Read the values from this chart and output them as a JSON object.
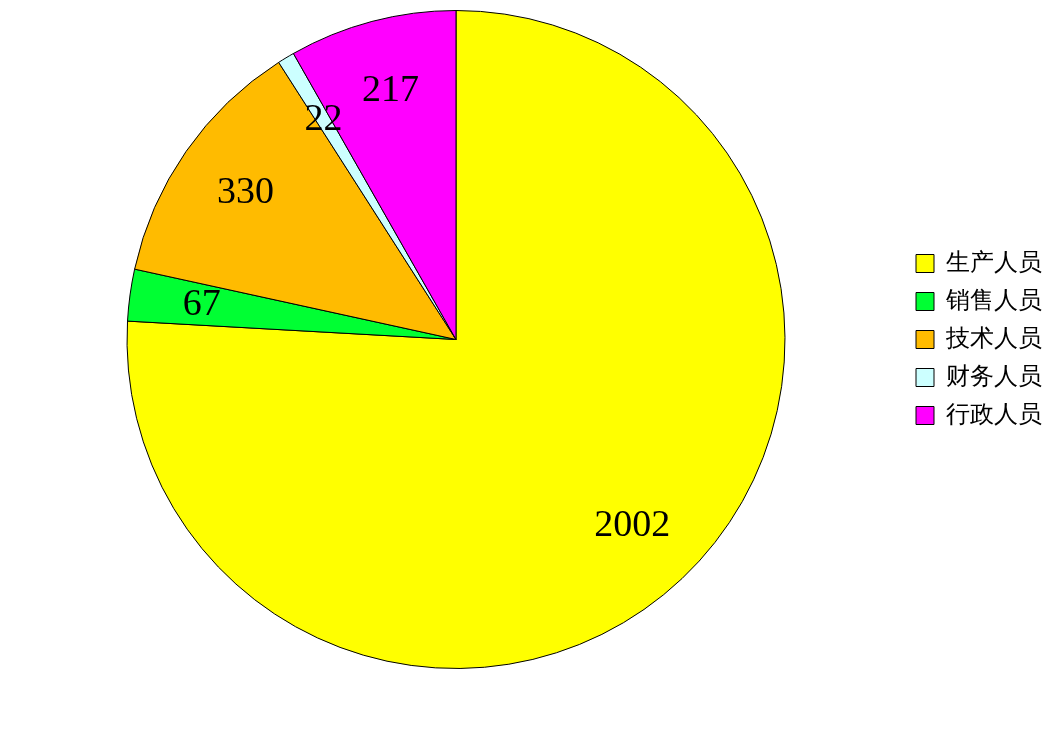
{
  "chart_data": {
    "type": "pie",
    "categories": [
      "生产人员",
      "销售人员",
      "技术人员",
      "财务人员",
      "行政人员"
    ],
    "values": [
      2002,
      67,
      330,
      22,
      217
    ],
    "colors": [
      "#ffff00",
      "#00ff33",
      "#ffbb00",
      "#ccffff",
      "#ff00ff"
    ],
    "data_labels": true,
    "legend": "right"
  }
}
